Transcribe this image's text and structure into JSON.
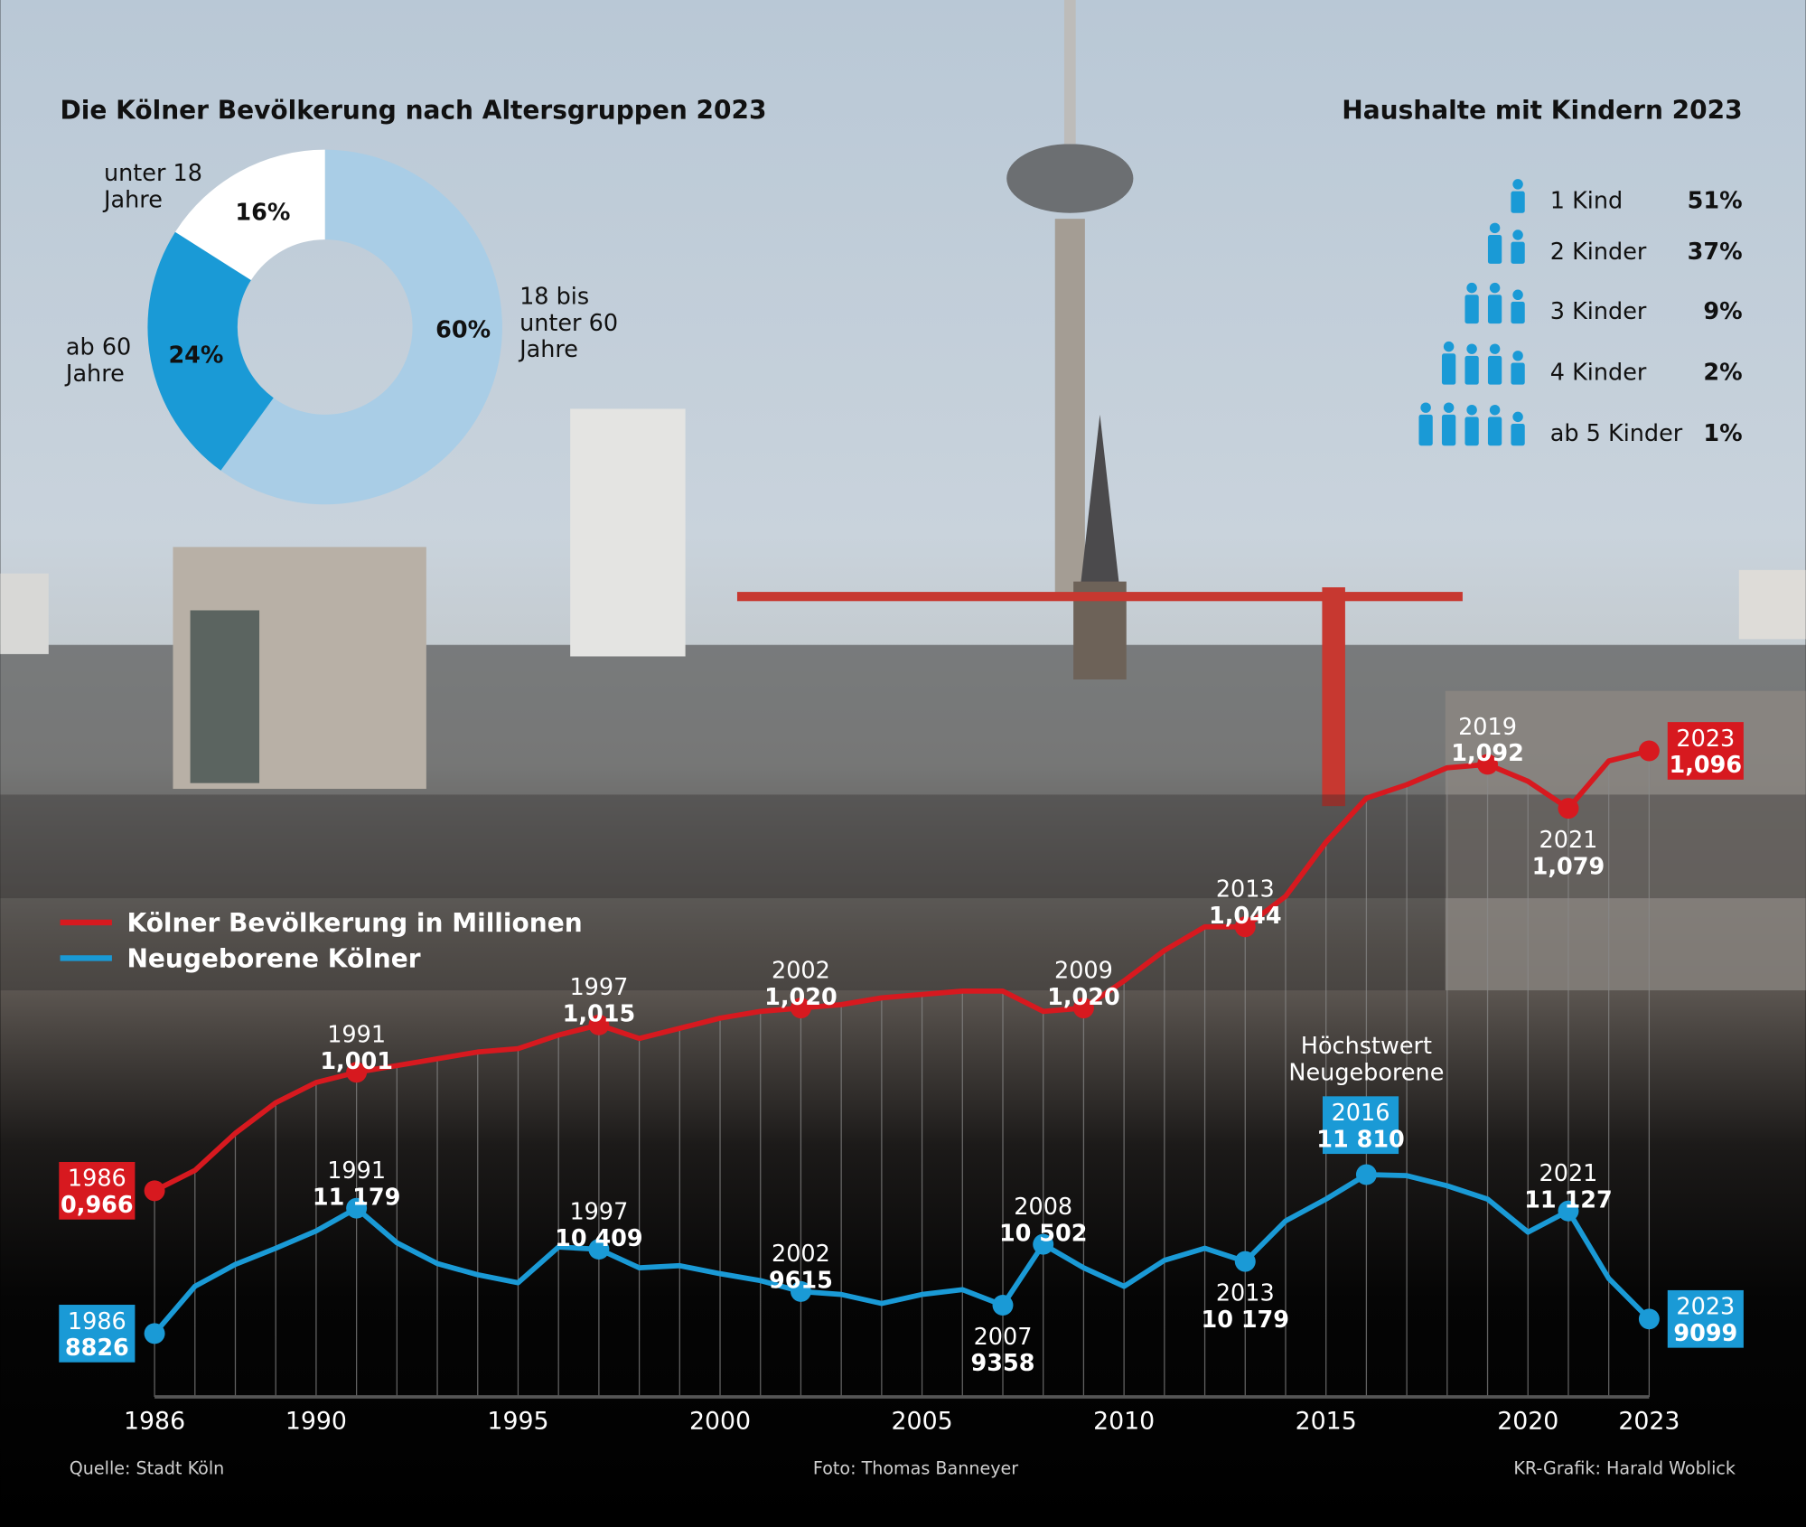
{
  "colors": {
    "red": "#d7191f",
    "blue": "#1a9ad6",
    "light_blue": "#a9cde6",
    "white": "#ffffff"
  },
  "credits": {
    "source": "Quelle: Stadt Köln",
    "photo": "Foto: Thomas Banneyer",
    "graphic": "KR-Grafik: Harald Woblick"
  },
  "chart_data": [
    {
      "type": "pie",
      "title": "Die Kölner Bevölkerung nach Altersgruppen 2023",
      "donut": true,
      "slices": [
        {
          "label": "18 bis unter 60 Jahre",
          "label_lines": [
            "18 bis",
            "unter 60",
            "Jahre"
          ],
          "value": 60,
          "value_label": "60%",
          "color": "#a9cde6"
        },
        {
          "label": "ab 60 Jahre",
          "label_lines": [
            "ab 60",
            "Jahre"
          ],
          "value": 24,
          "value_label": "24%",
          "color": "#1a9ad6"
        },
        {
          "label": "unter 18 Jahre",
          "label_lines": [
            "unter 18",
            "Jahre"
          ],
          "value": 16,
          "value_label": "16%",
          "color": "#ffffff"
        }
      ]
    },
    {
      "type": "table",
      "title": "Haushalte mit Kindern 2023",
      "icon": "person-icon",
      "rows": [
        {
          "label": "1 Kind",
          "children": 1,
          "value": "51%"
        },
        {
          "label": "2 Kinder",
          "children": 2,
          "value": "37%"
        },
        {
          "label": "3 Kinder",
          "children": 3,
          "value": "9%"
        },
        {
          "label": "4 Kinder",
          "children": 4,
          "value": "2%"
        },
        {
          "label": "ab 5 Kinder",
          "children": 5,
          "value": "1%"
        }
      ]
    },
    {
      "type": "line",
      "x": [
        1986,
        1987,
        1988,
        1989,
        1990,
        1991,
        1992,
        1993,
        1994,
        1995,
        1996,
        1997,
        1998,
        1999,
        2000,
        2001,
        2002,
        2003,
        2004,
        2005,
        2006,
        2007,
        2008,
        2009,
        2010,
        2011,
        2012,
        2013,
        2014,
        2015,
        2016,
        2017,
        2018,
        2019,
        2020,
        2021,
        2022,
        2023
      ],
      "xticks": [
        "1986",
        "1990",
        "1995",
        "2000",
        "2005",
        "2010",
        "2015",
        "2020",
        "2023"
      ],
      "xlim": [
        1986,
        2023
      ],
      "grid": "vertical, every year",
      "legend_placement": "left",
      "series": [
        {
          "name": "Kölner Bevölkerung in Millionen",
          "color": "#d7191f",
          "ylim": [
            0.966,
            1.096
          ],
          "values": [
            0.966,
            0.972,
            0.983,
            0.992,
            0.998,
            1.001,
            1.003,
            1.005,
            1.007,
            1.008,
            1.012,
            1.015,
            1.011,
            1.014,
            1.017,
            1.019,
            1.02,
            1.021,
            1.023,
            1.024,
            1.025,
            1.025,
            1.019,
            1.02,
            1.028,
            1.037,
            1.044,
            1.044,
            1.053,
            1.069,
            1.082,
            1.086,
            1.091,
            1.092,
            1.087,
            1.079,
            1.093,
            1.096
          ],
          "labels": [
            {
              "year": "1986",
              "value": "0,966",
              "style": "box"
            },
            {
              "year": "1991",
              "value": "1,001",
              "style": "above"
            },
            {
              "year": "1997",
              "value": "1,015",
              "style": "above"
            },
            {
              "year": "2002",
              "value": "1,020",
              "style": "above"
            },
            {
              "year": "2009",
              "value": "1,020",
              "style": "above"
            },
            {
              "year": "2013",
              "value": "1,044",
              "style": "above"
            },
            {
              "year": "2019",
              "value": "1,092",
              "style": "above"
            },
            {
              "year": "2021",
              "value": "1,079",
              "style": "below"
            },
            {
              "year": "2023",
              "value": "1,096",
              "style": "box"
            }
          ]
        },
        {
          "name": "Neugeborene Kölner",
          "color": "#1a9ad6",
          "ylim": [
            8826,
            11810
          ],
          "values": [
            8826,
            9712,
            10124,
            10427,
            10751,
            11179,
            10530,
            10140,
            9930,
            9780,
            10450,
            10409,
            10060,
            10100,
            9950,
            9820,
            9615,
            9560,
            9390,
            9560,
            9650,
            9358,
            10502,
            10060,
            9712,
            10200,
            10427,
            10179,
            10940,
            11350,
            11810,
            11790,
            11600,
            11350,
            10730,
            11127,
            9860,
            9099
          ],
          "labels": [
            {
              "year": "1986",
              "value": "8826",
              "style": "box"
            },
            {
              "year": "1991",
              "value": "11 179",
              "style": "above"
            },
            {
              "year": "1997",
              "value": "10 409",
              "style": "above"
            },
            {
              "year": "2002",
              "value": "9615",
              "style": "above"
            },
            {
              "year": "2007",
              "value": "9358",
              "style": "below"
            },
            {
              "year": "2008",
              "value": "10 502",
              "style": "above"
            },
            {
              "year": "2013",
              "value": "10 179",
              "style": "below"
            },
            {
              "year": "2016",
              "value": "11 810",
              "style": "box-above"
            },
            {
              "year": "2021",
              "value": "11 127",
              "style": "above"
            },
            {
              "year": "2023",
              "value": "9099",
              "style": "box"
            }
          ],
          "annotation": {
            "year": "2016",
            "lines": [
              "Höchstwert",
              "Neugeborene"
            ]
          }
        }
      ]
    }
  ]
}
